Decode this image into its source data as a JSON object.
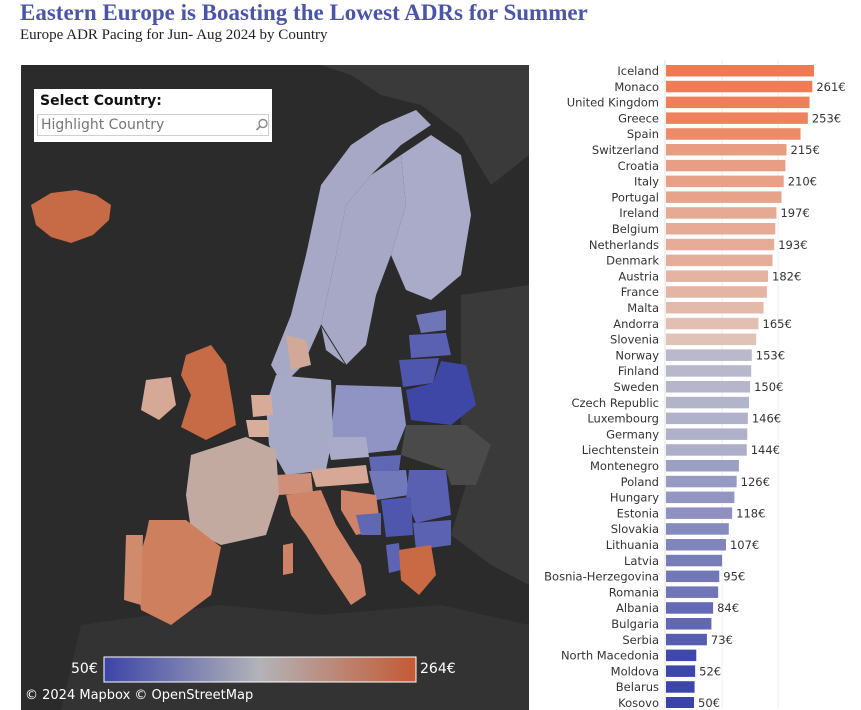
{
  "header": {
    "title": "Eastern Europe is Boasting the Lowest ADRs for Summer",
    "subtitle": "Europe ADR Pacing for Jun- Aug 2024 by Country"
  },
  "map": {
    "selector_label": "Select Country:",
    "selector_placeholder": "Highlight Country",
    "legend_min": "50€",
    "legend_max": "264€",
    "credit": "© 2024 Mapbox  © OpenStreetMap",
    "colors": {
      "low": "#3b44a8",
      "mid": "#b3b3b8",
      "high": "#c45a33",
      "background": "#2b2b2b"
    }
  },
  "chart_data": {
    "type": "bar",
    "orientation": "horizontal",
    "unit": "€",
    "xlim": [
      0,
      264
    ],
    "categories": [
      "Iceland",
      "Monaco",
      "United Kingdom",
      "Greece",
      "Spain",
      "Switzerland",
      "Croatia",
      "Italy",
      "Portugal",
      "Ireland",
      "Belgium",
      "Netherlands",
      "Denmark",
      "Austria",
      "France",
      "Malta",
      "Andorra",
      "Slovenia",
      "Norway",
      "Finland",
      "Sweden",
      "Czech Republic",
      "Luxembourg",
      "Germany",
      "Liechtenstein",
      "Montenegro",
      "Poland",
      "Hungary",
      "Estonia",
      "Slovakia",
      "Lithuania",
      "Latvia",
      "Bosnia-Herzegovina",
      "Romania",
      "Albania",
      "Bulgaria",
      "Serbia",
      "North Macedonia",
      "Moldova",
      "Belarus",
      "Kosovo"
    ],
    "values": [
      264,
      261,
      256,
      253,
      240,
      215,
      213,
      210,
      206,
      197,
      195,
      193,
      190,
      182,
      180,
      174,
      165,
      161,
      153,
      152,
      150,
      148,
      146,
      145,
      144,
      130,
      126,
      122,
      118,
      112,
      107,
      100,
      95,
      93,
      84,
      81,
      73,
      54,
      52,
      51,
      50
    ],
    "data_labels": [
      "",
      "261€",
      "",
      "253€",
      "",
      "215€",
      "",
      "210€",
      "",
      "197€",
      "",
      "193€",
      "",
      "182€",
      "",
      "",
      "165€",
      "",
      "153€",
      "",
      "150€",
      "",
      "146€",
      "",
      "144€",
      "",
      "126€",
      "",
      "118€",
      "",
      "107€",
      "",
      "95€",
      "",
      "84€",
      "",
      "73€",
      "",
      "52€",
      "",
      "50€"
    ]
  }
}
